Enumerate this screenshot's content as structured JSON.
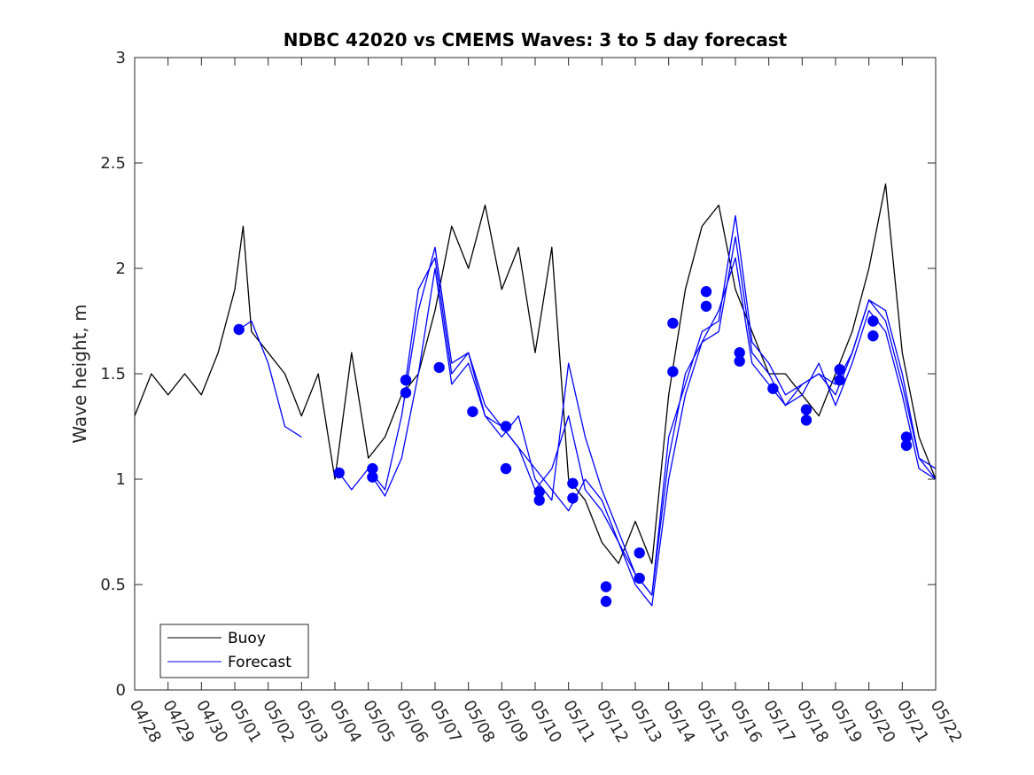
{
  "chart_data": {
    "type": "line",
    "title": "NDBC 42020 vs CMEMS Waves: 3 to 5 day forecast",
    "xlabel": "",
    "ylabel": "Wave height, m",
    "xlim": [
      "04/28",
      "05/22"
    ],
    "ylim": [
      0,
      3
    ],
    "xtick_labels": [
      "04/28",
      "04/29",
      "04/30",
      "05/01",
      "05/02",
      "05/03",
      "05/04",
      "05/05",
      "05/06",
      "05/07",
      "05/08",
      "05/09",
      "05/10",
      "05/11",
      "05/12",
      "05/13",
      "05/14",
      "05/15",
      "05/16",
      "05/17",
      "05/18",
      "05/19",
      "05/20",
      "05/21",
      "05/22"
    ],
    "yticks": [
      0,
      0.5,
      1,
      1.5,
      2,
      2.5,
      3
    ],
    "ytick_labels": [
      "0",
      "0.5",
      "1",
      "1.5",
      "2",
      "2.5",
      "3"
    ],
    "grid": false,
    "legend": {
      "position": "bottom-left",
      "entries": [
        "Buoy",
        "Forecast"
      ]
    },
    "colors": {
      "buoy": "#000000",
      "forecast": "#0000ff"
    },
    "series": [
      {
        "name": "Buoy",
        "color": "#000000",
        "x": [
          "04/28",
          "04/28 12:00",
          "04/29",
          "04/29 12:00",
          "04/30",
          "04/30 12:00",
          "05/01",
          "05/01 06:00",
          "05/01 12:00",
          "05/02",
          "05/02 12:00",
          "05/03",
          "05/03 12:00",
          "05/04",
          "05/04 12:00",
          "05/05",
          "05/05 12:00",
          "05/06",
          "05/06 12:00",
          "05/07",
          "05/07 12:00",
          "05/08",
          "05/08 12:00",
          "05/09",
          "05/09 12:00",
          "05/10",
          "05/10 12:00",
          "05/11",
          "05/11 12:00",
          "05/12",
          "05/12 12:00",
          "05/13",
          "05/13 12:00",
          "05/14",
          "05/14 12:00",
          "05/15",
          "05/15 12:00",
          "05/16",
          "05/16 12:00",
          "05/17",
          "05/17 12:00",
          "05/18",
          "05/18 12:00",
          "05/19",
          "05/19 12:00",
          "05/20",
          "05/20 12:00",
          "05/21",
          "05/21 12:00",
          "05/22"
        ],
        "y": [
          1.3,
          1.5,
          1.4,
          1.5,
          1.4,
          1.6,
          1.9,
          2.2,
          1.7,
          1.6,
          1.5,
          1.3,
          1.5,
          1.0,
          1.6,
          1.1,
          1.2,
          1.4,
          1.5,
          1.8,
          2.2,
          2.0,
          2.3,
          1.9,
          2.1,
          1.6,
          2.1,
          1.0,
          0.9,
          0.7,
          0.6,
          0.8,
          0.6,
          1.4,
          1.9,
          2.2,
          2.3,
          1.9,
          1.7,
          1.5,
          1.5,
          1.4,
          1.3,
          1.5,
          1.7,
          2.0,
          2.4,
          1.6,
          1.2,
          1.0
        ]
      },
      {
        "name": "Forecast",
        "color": "#0000ff",
        "x": [
          "05/01 03:00",
          "05/01 12:00",
          "05/02",
          "05/02 12:00",
          "05/03"
        ],
        "y": [
          1.71,
          1.75,
          1.55,
          1.25,
          1.2
        ]
      },
      {
        "name": "",
        "color": "#0000ff",
        "x": [
          "05/04 03:00",
          "05/04 12:00",
          "05/05",
          "05/05 12:00",
          "05/06",
          "05/06 12:00",
          "05/07",
          "05/07 12:00",
          "05/08",
          "05/08 12:00",
          "05/09",
          "05/09 12:00",
          "05/10",
          "05/10 12:00",
          "05/11",
          "05/11 12:00",
          "05/12",
          "05/12 12:00",
          "05/13",
          "05/13 12:00",
          "05/14",
          "05/14 12:00",
          "05/15",
          "05/15 12:00",
          "05/16",
          "05/16 12:00",
          "05/17",
          "05/17 12:00",
          "05/18",
          "05/18 12:00",
          "05/19",
          "05/19 12:00",
          "05/20",
          "05/20 12:00",
          "05/21",
          "05/21 12:00",
          "05/22"
        ],
        "y": [
          1.03,
          0.95,
          1.05,
          0.95,
          1.3,
          1.8,
          2.1,
          1.55,
          1.6,
          1.35,
          1.25,
          1.15,
          1.05,
          0.95,
          0.85,
          1.0,
          0.9,
          0.7,
          0.55,
          0.45,
          1.2,
          1.45,
          1.7,
          1.75,
          2.25,
          1.65,
          1.55,
          1.4,
          1.45,
          1.5,
          1.4,
          1.6,
          1.85,
          1.75,
          1.45,
          1.1,
          1.0
        ]
      },
      {
        "name": "",
        "color": "#0000ff",
        "x": [
          "05/05 03:00",
          "05/05 12:00",
          "05/06",
          "05/06 12:00",
          "05/07",
          "05/07 12:00",
          "05/08",
          "05/08 12:00",
          "05/09",
          "05/09 12:00",
          "05/10",
          "05/10 12:00",
          "05/11",
          "05/11 12:00",
          "05/12",
          "05/12 12:00",
          "05/13",
          "05/13 12:00",
          "05/14",
          "05/14 12:00",
          "05/15",
          "05/15 12:00",
          "05/16",
          "05/16 12:00",
          "05/17",
          "05/17 12:00",
          "05/18",
          "05/18 12:00",
          "05/19",
          "05/19 12:00",
          "05/20",
          "05/20 12:00",
          "05/21",
          "05/21 12:00",
          "05/22"
        ],
        "y": [
          1.01,
          0.92,
          1.1,
          1.5,
          2.0,
          1.45,
          1.55,
          1.3,
          1.2,
          1.3,
          1.0,
          0.9,
          1.55,
          1.2,
          0.95,
          0.75,
          0.55,
          0.45,
          1.1,
          1.5,
          1.65,
          1.7,
          2.15,
          1.6,
          1.5,
          1.35,
          1.4,
          1.55,
          1.35,
          1.55,
          1.8,
          1.7,
          1.4,
          1.05,
          1.0
        ]
      },
      {
        "name": "",
        "color": "#0000ff",
        "x": [
          "05/06 03:00",
          "05/06 12:00",
          "05/07",
          "05/07 12:00",
          "05/08",
          "05/08 12:00",
          "05/09",
          "05/09 12:00",
          "05/10",
          "05/10 12:00",
          "05/11",
          "05/11 12:00",
          "05/12",
          "05/12 12:00",
          "05/13",
          "05/13 12:00",
          "05/14",
          "05/14 12:00",
          "05/15",
          "05/15 12:00",
          "05/16",
          "05/16 12:00",
          "05/17",
          "05/17 12:00",
          "05/18",
          "05/18 12:00",
          "05/19",
          "05/19 12:00",
          "05/20",
          "05/20 12:00",
          "05/21",
          "05/21 12:00",
          "05/22"
        ],
        "y": [
          1.47,
          1.9,
          2.05,
          1.5,
          1.6,
          1.3,
          1.25,
          1.15,
          0.95,
          1.05,
          1.3,
          0.95,
          0.85,
          0.7,
          0.5,
          0.4,
          1.0,
          1.4,
          1.65,
          1.8,
          2.05,
          1.55,
          1.45,
          1.35,
          1.45,
          1.5,
          1.45,
          1.6,
          1.85,
          1.8,
          1.5,
          1.1,
          1.05
        ]
      }
    ],
    "markers": {
      "color": "#0000ff",
      "x": [
        "05/01 03:00",
        "05/04 03:00",
        "05/05 03:00",
        "05/05 03:00",
        "05/06 03:00",
        "05/06 03:00",
        "05/07 03:00",
        "05/08 03:00",
        "05/09 03:00",
        "05/09 03:00",
        "05/10 03:00",
        "05/10 03:00",
        "05/11 03:00",
        "05/11 03:00",
        "05/12 03:00",
        "05/12 03:00",
        "05/13 03:00",
        "05/13 03:00",
        "05/14 03:00",
        "05/14 03:00",
        "05/15 03:00",
        "05/15 03:00",
        "05/16 03:00",
        "05/16 03:00",
        "05/17 03:00",
        "05/18 03:00",
        "05/18 03:00",
        "05/19 03:00",
        "05/19 03:00",
        "05/20 03:00",
        "05/20 03:00",
        "05/21 03:00",
        "05/21 03:00"
      ],
      "y": [
        1.71,
        1.03,
        1.05,
        1.01,
        1.47,
        1.41,
        1.53,
        1.32,
        1.25,
        1.05,
        0.94,
        0.9,
        0.98,
        0.91,
        0.49,
        0.42,
        0.65,
        0.53,
        1.74,
        1.51,
        1.89,
        1.82,
        1.6,
        1.56,
        1.43,
        1.33,
        1.28,
        1.52,
        1.47,
        1.75,
        1.68,
        1.2,
        1.16
      ]
    }
  }
}
